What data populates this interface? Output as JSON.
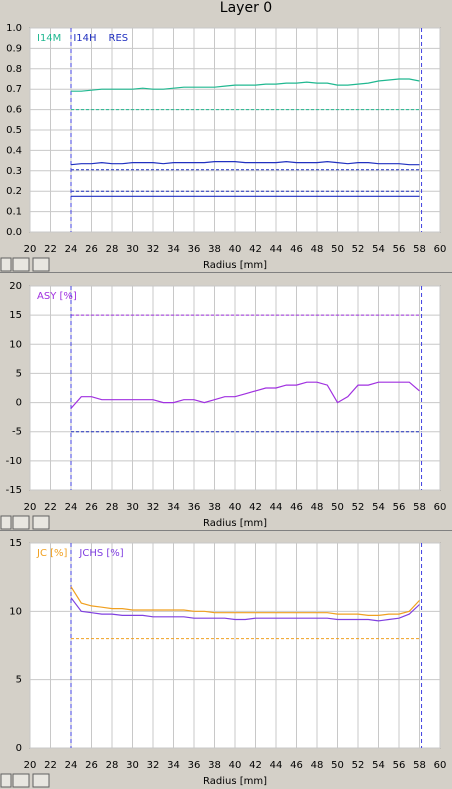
{
  "title": "Layer 0",
  "chart_data": [
    {
      "type": "line",
      "xlabel": "Radius [mm]",
      "x": [
        24,
        25,
        26,
        27,
        28,
        29,
        30,
        31,
        32,
        33,
        34,
        35,
        36,
        37,
        38,
        39,
        40,
        41,
        42,
        43,
        44,
        45,
        46,
        47,
        48,
        49,
        50,
        51,
        52,
        53,
        54,
        55,
        56,
        57,
        58
      ],
      "xlim": [
        20,
        60
      ],
      "xticks": [
        20,
        22,
        24,
        26,
        28,
        30,
        32,
        34,
        36,
        38,
        40,
        42,
        44,
        46,
        48,
        50,
        52,
        54,
        56,
        58,
        60
      ],
      "ylim": [
        0,
        1
      ],
      "yticks": [
        {
          "value": 0,
          "label": "0.0"
        },
        0.1,
        0.2,
        0.3,
        0.4,
        0.5,
        0.6,
        0.7,
        0.8,
        0.9,
        {
          "value": 1,
          "label": "1.0"
        }
      ],
      "grid": true,
      "vlines": [
        24,
        58.2
      ],
      "ref_lines": [
        {
          "value": 0.6,
          "color": "#20b890"
        },
        {
          "value": 0.305,
          "color": "#2030c0"
        },
        {
          "value": 0.2,
          "color": "#2030c0"
        }
      ],
      "series": [
        {
          "name": "I14M",
          "color": "#20b890",
          "values": [
            0.69,
            0.69,
            0.695,
            0.7,
            0.7,
            0.7,
            0.7,
            0.705,
            0.7,
            0.7,
            0.705,
            0.71,
            0.71,
            0.71,
            0.71,
            0.715,
            0.72,
            0.72,
            0.72,
            0.725,
            0.725,
            0.73,
            0.73,
            0.735,
            0.73,
            0.73,
            0.72,
            0.72,
            0.725,
            0.73,
            0.74,
            0.745,
            0.75,
            0.75,
            0.74
          ]
        },
        {
          "name": "I14H",
          "color": "#2030c0",
          "values": [
            0.33,
            0.335,
            0.335,
            0.34,
            0.335,
            0.335,
            0.34,
            0.34,
            0.34,
            0.335,
            0.34,
            0.34,
            0.34,
            0.34,
            0.345,
            0.345,
            0.345,
            0.34,
            0.34,
            0.34,
            0.34,
            0.345,
            0.34,
            0.34,
            0.34,
            0.345,
            0.34,
            0.335,
            0.34,
            0.34,
            0.335,
            0.335,
            0.335,
            0.33,
            0.33
          ]
        },
        {
          "name": "RES",
          "color": "#2030c0",
          "values": [
            0.175,
            0.175,
            0.175,
            0.175,
            0.175,
            0.175,
            0.175,
            0.175,
            0.175,
            0.175,
            0.175,
            0.175,
            0.175,
            0.175,
            0.175,
            0.175,
            0.175,
            0.175,
            0.175,
            0.175,
            0.175,
            0.175,
            0.175,
            0.175,
            0.175,
            0.175,
            0.175,
            0.175,
            0.175,
            0.175,
            0.175,
            0.175,
            0.175,
            0.175,
            0.175
          ]
        }
      ]
    },
    {
      "type": "line",
      "xlabel": "Radius [mm]",
      "x": [
        24,
        25,
        26,
        27,
        28,
        29,
        30,
        31,
        32,
        33,
        34,
        35,
        36,
        37,
        38,
        39,
        40,
        41,
        42,
        43,
        44,
        45,
        46,
        47,
        48,
        49,
        50,
        51,
        52,
        53,
        54,
        55,
        56,
        57,
        58
      ],
      "xlim": [
        20,
        60
      ],
      "xticks": [
        20,
        22,
        24,
        26,
        28,
        30,
        32,
        34,
        36,
        38,
        40,
        42,
        44,
        46,
        48,
        50,
        52,
        54,
        56,
        58,
        60
      ],
      "ylim": [
        -15,
        20
      ],
      "yticks": [
        -15,
        -10,
        -5,
        0,
        5,
        10,
        15,
        20
      ],
      "grid": true,
      "vlines": [
        24,
        58.2
      ],
      "ref_lines": [
        {
          "value": 15,
          "color": "#a030e0"
        },
        {
          "value": -5,
          "color": "#2030c0"
        }
      ],
      "series": [
        {
          "name": "ASY [%]",
          "color": "#a030e0",
          "values": [
            -1,
            1,
            1,
            0.5,
            0.5,
            0.5,
            0.5,
            0.5,
            0.5,
            0,
            0,
            0.5,
            0.5,
            0,
            0.5,
            1,
            1,
            1.5,
            2,
            2.5,
            2.5,
            3,
            3,
            3.5,
            3.5,
            3,
            0,
            1,
            3,
            3,
            3.5,
            3.5,
            3.5,
            3.5,
            2
          ]
        }
      ]
    },
    {
      "type": "line",
      "xlabel": "Radius [mm]",
      "x": [
        24,
        25,
        26,
        27,
        28,
        29,
        30,
        31,
        32,
        33,
        34,
        35,
        36,
        37,
        38,
        39,
        40,
        41,
        42,
        43,
        44,
        45,
        46,
        47,
        48,
        49,
        50,
        51,
        52,
        53,
        54,
        55,
        56,
        57,
        58
      ],
      "xlim": [
        20,
        60
      ],
      "xticks": [
        20,
        22,
        24,
        26,
        28,
        30,
        32,
        34,
        36,
        38,
        40,
        42,
        44,
        46,
        48,
        50,
        52,
        54,
        56,
        58,
        60
      ],
      "ylim": [
        0,
        15
      ],
      "yticks": [
        0,
        5,
        10,
        15
      ],
      "grid": true,
      "vlines": [
        24,
        58.2
      ],
      "ref_lines": [
        {
          "value": 8,
          "color": "#f0a020"
        }
      ],
      "series": [
        {
          "name": "JC [%]",
          "color": "#f0a020",
          "values": [
            11.8,
            10.6,
            10.4,
            10.3,
            10.2,
            10.2,
            10.1,
            10.1,
            10.1,
            10.1,
            10.1,
            10.1,
            10,
            10,
            9.9,
            9.9,
            9.9,
            9.9,
            9.9,
            9.9,
            9.9,
            9.9,
            9.9,
            9.9,
            9.9,
            9.9,
            9.8,
            9.8,
            9.8,
            9.7,
            9.7,
            9.8,
            9.8,
            10,
            10.8
          ]
        },
        {
          "name": "JCHS [%]",
          "color": "#8040e0",
          "values": [
            11,
            10,
            9.9,
            9.8,
            9.8,
            9.7,
            9.7,
            9.7,
            9.6,
            9.6,
            9.6,
            9.6,
            9.5,
            9.5,
            9.5,
            9.5,
            9.4,
            9.4,
            9.5,
            9.5,
            9.5,
            9.5,
            9.5,
            9.5,
            9.5,
            9.5,
            9.4,
            9.4,
            9.4,
            9.4,
            9.3,
            9.4,
            9.5,
            9.8,
            10.5
          ]
        }
      ]
    }
  ]
}
